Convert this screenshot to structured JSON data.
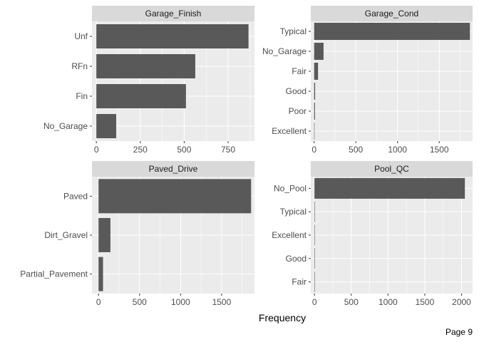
{
  "colors": {
    "panel_bg": "#ebebeb",
    "strip_bg": "#d9d9d9",
    "grid": "#ffffff",
    "bar": "#595959",
    "tick_text": "#4d4d4d"
  },
  "xlabel": "Frequency",
  "page_label": "Page 9",
  "chart_data": [
    {
      "type": "bar",
      "orientation": "horizontal",
      "title": "Garage_Finish",
      "categories": [
        "Unf",
        "RFn",
        "Fin",
        "No_Garage"
      ],
      "values": [
        866,
        563,
        510,
        113
      ],
      "xlim": [
        -25,
        900
      ],
      "xticks": [
        0,
        250,
        500,
        750
      ]
    },
    {
      "type": "bar",
      "orientation": "horizontal",
      "title": "Garage_Cond",
      "categories": [
        "Typical",
        "No_Garage",
        "Fair",
        "Good",
        "Poor",
        "Excellent"
      ],
      "values": [
        1868,
        113,
        47,
        12,
        10,
        2
      ],
      "xlim": [
        -40,
        1900
      ],
      "xticks": [
        0,
        500,
        1000,
        1500
      ]
    },
    {
      "type": "bar",
      "orientation": "horizontal",
      "title": "Paved_Drive",
      "categories": [
        "Paved",
        "Dirt_Gravel",
        "Partial_Pavement"
      ],
      "values": [
        1859,
        145,
        55
      ],
      "xlim": [
        -80,
        1900
      ],
      "xticks": [
        0,
        500,
        1000,
        1500
      ]
    },
    {
      "type": "bar",
      "orientation": "horizontal",
      "title": "Pool_QC",
      "categories": [
        "No_Pool",
        "Typical",
        "Excellent",
        "Good",
        "Fair"
      ],
      "values": [
        2045,
        3,
        3,
        2,
        1
      ],
      "xlim": [
        -50,
        2150
      ],
      "xticks": [
        0,
        500,
        1000,
        1500,
        2000
      ]
    }
  ]
}
